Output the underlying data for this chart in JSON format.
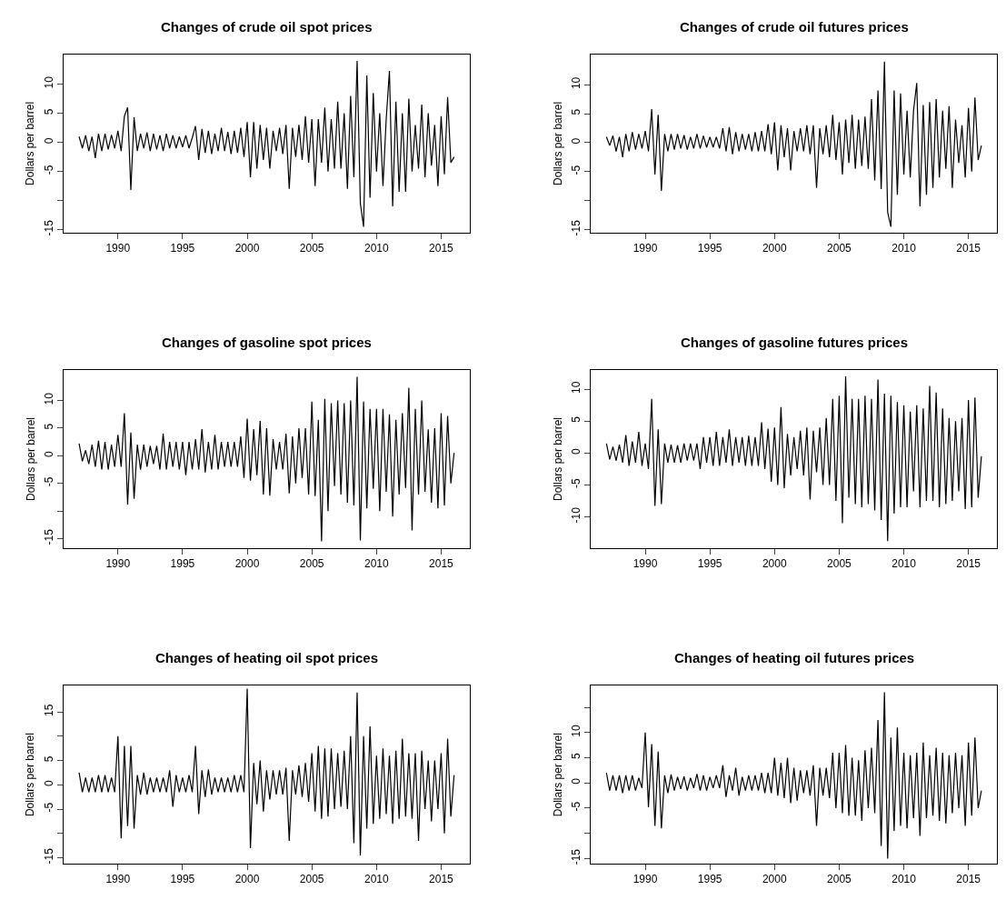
{
  "chart_data": [
    {
      "type": "line",
      "title": "Changes of crude oil spot prices",
      "ylabel": "Dollars per barrel",
      "color": "#000000",
      "xlim": [
        1985.8,
        2017.2
      ],
      "xticks": [
        1990,
        1995,
        2000,
        2005,
        2010,
        2015
      ],
      "ylim": [
        -15.5,
        15.1
      ],
      "yticks": [
        -15,
        {
          "value": -10,
          "label": null
        },
        -5,
        0,
        5,
        10
      ],
      "x": [
        1987.0,
        1987.25,
        1987.5,
        1987.75,
        1988.0,
        1988.25,
        1988.5,
        1988.75,
        1989.0,
        1989.25,
        1989.5,
        1989.75,
        1990.0,
        1990.25,
        1990.5,
        1990.75,
        1991.0,
        1991.25,
        1991.5,
        1991.75,
        1992.0,
        1992.25,
        1992.5,
        1992.75,
        1993.0,
        1993.25,
        1993.5,
        1993.75,
        1994.0,
        1994.25,
        1994.5,
        1994.75,
        1995.0,
        1995.25,
        1995.5,
        1995.75,
        1996.0,
        1996.25,
        1996.5,
        1996.75,
        1997.0,
        1997.25,
        1997.5,
        1997.75,
        1998.0,
        1998.25,
        1998.5,
        1998.75,
        1999.0,
        1999.25,
        1999.5,
        1999.75,
        2000.0,
        2000.25,
        2000.5,
        2000.75,
        2001.0,
        2001.25,
        2001.5,
        2001.75,
        2002.0,
        2002.25,
        2002.5,
        2002.75,
        2003.0,
        2003.25,
        2003.5,
        2003.75,
        2004.0,
        2004.25,
        2004.5,
        2004.75,
        2005.0,
        2005.25,
        2005.5,
        2005.75,
        2006.0,
        2006.25,
        2006.5,
        2006.75,
        2007.0,
        2007.25,
        2007.5,
        2007.75,
        2008.0,
        2008.25,
        2008.5,
        2008.75,
        2009.0,
        2009.25,
        2009.5,
        2009.75,
        2010.0,
        2010.25,
        2010.5,
        2010.75,
        2011.0,
        2011.25,
        2011.5,
        2011.75,
        2012.0,
        2012.25,
        2012.5,
        2012.75,
        2013.0,
        2013.25,
        2013.5,
        2013.75,
        2014.0,
        2014.25,
        2014.5,
        2014.75,
        2015.0,
        2015.25,
        2015.5,
        2015.75,
        2016.0
      ],
      "values": [
        1,
        -1,
        1.2,
        -1.5,
        1,
        -2.7,
        1.5,
        -1.5,
        1.5,
        -1.2,
        1.3,
        -1,
        2,
        -1.5,
        4.5,
        6,
        -8.2,
        4.3,
        -1.5,
        1.5,
        -1,
        1.7,
        -1.5,
        1.5,
        -1.2,
        1.2,
        -1.5,
        1.5,
        -1,
        1.2,
        -1,
        1,
        -0.8,
        1.2,
        -1,
        0.8,
        2.8,
        -3,
        2.3,
        -1.8,
        2,
        -2,
        1.5,
        -1.5,
        2.5,
        -1.5,
        1.8,
        -2,
        2,
        -1.8,
        2.5,
        -2.5,
        3.5,
        -6,
        3.5,
        -4.5,
        3,
        -3,
        2.5,
        -4.5,
        2,
        -1.5,
        2.5,
        -2,
        3,
        -8,
        2.5,
        -2.5,
        3,
        -3,
        4.5,
        -3.5,
        4,
        -7.5,
        4,
        -3.5,
        6,
        -5,
        4,
        -4.5,
        7,
        -4.5,
        5,
        -8,
        8,
        -6,
        14,
        -10.5,
        -14.5,
        11.5,
        -9.5,
        8.5,
        -5,
        5,
        -7.5,
        4,
        12.3,
        -11,
        7,
        -8.5,
        5,
        -8.5,
        7.5,
        -5,
        3,
        -4.5,
        6.5,
        -6,
        5,
        -4,
        3,
        -7.5,
        4.5,
        -5.5,
        7.8,
        -3.5,
        -2.5
      ]
    },
    {
      "type": "line",
      "title": "Changes of crude oil futures prices",
      "ylabel": "Dollars per barrel",
      "color": "#000000",
      "xlim": [
        1985.8,
        2017.2
      ],
      "xticks": [
        1990,
        1995,
        2000,
        2005,
        2010,
        2015
      ],
      "ylim": [
        -15.5,
        15.2
      ],
      "yticks": [
        -15,
        {
          "value": -10,
          "label": null
        },
        -5,
        0,
        5,
        10
      ],
      "x": [
        1987.0,
        1987.25,
        1987.5,
        1987.75,
        1988.0,
        1988.25,
        1988.5,
        1988.75,
        1989.0,
        1989.25,
        1989.5,
        1989.75,
        1990.0,
        1990.25,
        1990.5,
        1990.75,
        1991.0,
        1991.25,
        1991.5,
        1991.75,
        1992.0,
        1992.25,
        1992.5,
        1992.75,
        1993.0,
        1993.25,
        1993.5,
        1993.75,
        1994.0,
        1994.25,
        1994.5,
        1994.75,
        1995.0,
        1995.25,
        1995.5,
        1995.75,
        1996.0,
        1996.25,
        1996.5,
        1996.75,
        1997.0,
        1997.25,
        1997.5,
        1997.75,
        1998.0,
        1998.25,
        1998.5,
        1998.75,
        1999.0,
        1999.25,
        1999.5,
        1999.75,
        2000.0,
        2000.25,
        2000.5,
        2000.75,
        2001.0,
        2001.25,
        2001.5,
        2001.75,
        2002.0,
        2002.25,
        2002.5,
        2002.75,
        2003.0,
        2003.25,
        2003.5,
        2003.75,
        2004.0,
        2004.25,
        2004.5,
        2004.75,
        2005.0,
        2005.25,
        2005.5,
        2005.75,
        2006.0,
        2006.25,
        2006.5,
        2006.75,
        2007.0,
        2007.25,
        2007.5,
        2007.75,
        2008.0,
        2008.25,
        2008.5,
        2008.75,
        2009.0,
        2009.25,
        2009.5,
        2009.75,
        2010.0,
        2010.25,
        2010.5,
        2010.75,
        2011.0,
        2011.25,
        2011.5,
        2011.75,
        2012.0,
        2012.25,
        2012.5,
        2012.75,
        2013.0,
        2013.25,
        2013.5,
        2013.75,
        2014.0,
        2014.25,
        2014.5,
        2014.75,
        2015.0,
        2015.25,
        2015.5,
        2015.75,
        2016.0
      ],
      "values": [
        1,
        -0.5,
        1.2,
        -1.5,
        1,
        -2.5,
        1.5,
        -1.5,
        1.8,
        -1.2,
        1.5,
        -1,
        2,
        -1.5,
        5.8,
        -5.5,
        4.8,
        -8.3,
        1.5,
        -1.5,
        1.5,
        -1.2,
        1.5,
        -1,
        1.3,
        -1.2,
        1,
        -1,
        1.5,
        -1,
        1.2,
        -0.8,
        1,
        -0.8,
        1,
        -1,
        2.5,
        -1.5,
        2.7,
        -2,
        1.8,
        -1.5,
        1.5,
        -1.2,
        1.5,
        -1.5,
        1.8,
        -1.5,
        2,
        -1.5,
        3.2,
        -2,
        3.5,
        -4.8,
        3,
        -2.5,
        2.5,
        -4.8,
        2,
        -1.5,
        2.5,
        -1.5,
        3,
        -2,
        3,
        -7.8,
        2.5,
        -2,
        3,
        -2.5,
        4.8,
        -3,
        3.5,
        -5.5,
        4,
        -3.5,
        4.8,
        -4.5,
        4,
        -4,
        4.5,
        -4.5,
        7.5,
        -6.5,
        9,
        -8,
        14,
        -12,
        -14.5,
        9,
        -9,
        8.5,
        -5.5,
        5.5,
        -6,
        5.5,
        10.3,
        -11,
        6.5,
        -9,
        7,
        -7.8,
        7.5,
        -6,
        5.5,
        -4.5,
        6.3,
        -7.8,
        4,
        -3.5,
        3,
        -6,
        6,
        -5,
        7.8,
        -3,
        -0.5
      ]
    },
    {
      "type": "line",
      "title": "Changes of gasoline spot prices",
      "ylabel": "Dollars per barrel",
      "color": "#000000",
      "xlim": [
        1985.8,
        2017.2
      ],
      "xticks": [
        1990,
        1995,
        2000,
        2005,
        2010,
        2015
      ],
      "ylim": [
        -16.7,
        15.5
      ],
      "yticks": [
        -15,
        {
          "value": -10,
          "label": null
        },
        -5,
        0,
        5,
        10
      ],
      "x": [
        1987.0,
        1987.25,
        1987.5,
        1987.75,
        1988.0,
        1988.25,
        1988.5,
        1988.75,
        1989.0,
        1989.25,
        1989.5,
        1989.75,
        1990.0,
        1990.25,
        1990.5,
        1990.75,
        1991.0,
        1991.25,
        1991.5,
        1991.75,
        1992.0,
        1992.25,
        1992.5,
        1992.75,
        1993.0,
        1993.25,
        1993.5,
        1993.75,
        1994.0,
        1994.25,
        1994.5,
        1994.75,
        1995.0,
        1995.25,
        1995.5,
        1995.75,
        1996.0,
        1996.25,
        1996.5,
        1996.75,
        1997.0,
        1997.25,
        1997.5,
        1997.75,
        1998.0,
        1998.25,
        1998.5,
        1998.75,
        1999.0,
        1999.25,
        1999.5,
        1999.75,
        2000.0,
        2000.25,
        2000.5,
        2000.75,
        2001.0,
        2001.25,
        2001.5,
        2001.75,
        2002.0,
        2002.25,
        2002.5,
        2002.75,
        2003.0,
        2003.25,
        2003.5,
        2003.75,
        2004.0,
        2004.25,
        2004.5,
        2004.75,
        2005.0,
        2005.25,
        2005.5,
        2005.75,
        2006.0,
        2006.25,
        2006.5,
        2006.75,
        2007.0,
        2007.25,
        2007.5,
        2007.75,
        2008.0,
        2008.25,
        2008.5,
        2008.75,
        2009.0,
        2009.25,
        2009.5,
        2009.75,
        2010.0,
        2010.25,
        2010.5,
        2010.75,
        2011.0,
        2011.25,
        2011.5,
        2011.75,
        2012.0,
        2012.25,
        2012.5,
        2012.75,
        2013.0,
        2013.25,
        2013.5,
        2013.75,
        2014.0,
        2014.25,
        2014.5,
        2014.75,
        2015.0,
        2015.25,
        2015.5,
        2015.75,
        2016.0
      ],
      "values": [
        2.2,
        -1,
        1,
        -1.5,
        2,
        -2,
        2.7,
        -2.5,
        2.5,
        -2.5,
        2,
        -2,
        3.8,
        -2,
        7.7,
        -8.8,
        4.2,
        -7.8,
        2,
        -2.5,
        2,
        -2,
        1.8,
        -1.5,
        1.8,
        -2.5,
        4,
        -2.5,
        2.5,
        -2,
        2.5,
        -2.5,
        2.5,
        -3.5,
        2.5,
        -2.5,
        3,
        -2.5,
        4.8,
        -3,
        2.5,
        -2.5,
        3.8,
        -2.5,
        2.5,
        -2,
        2.5,
        -2,
        2.5,
        -2,
        3.5,
        -4,
        6.7,
        -4.5,
        4.8,
        -3.5,
        6.3,
        -7,
        5,
        -7.2,
        3,
        -2.5,
        2.5,
        -2.5,
        4,
        -6.8,
        3.5,
        -5,
        5,
        -4,
        5,
        -7,
        9.8,
        -7.3,
        6.5,
        -15.5,
        10.3,
        -10,
        9.5,
        -5.5,
        10,
        -7,
        9.5,
        -8.5,
        10,
        -9,
        14.3,
        -15.3,
        9.8,
        -9.5,
        8.5,
        -6,
        8.5,
        -10,
        8.5,
        -6.5,
        7.5,
        -11,
        6.5,
        -7,
        7.7,
        -5.8,
        12.3,
        -13.5,
        8.5,
        -7,
        10,
        -6.5,
        4.8,
        -8.5,
        5,
        -9.5,
        7.7,
        -9,
        7.2,
        -5,
        0.5
      ]
    },
    {
      "type": "line",
      "title": "Changes of gasoline futures prices",
      "ylabel": "Dollars per barrel",
      "color": "#000000",
      "xlim": [
        1985.8,
        2017.2
      ],
      "xticks": [
        1990,
        1995,
        2000,
        2005,
        2010,
        2015
      ],
      "ylim": [
        -14.9,
        13
      ],
      "yticks": [
        -10,
        -5,
        0,
        5,
        10
      ],
      "x": [
        1987.0,
        1987.25,
        1987.5,
        1987.75,
        1988.0,
        1988.25,
        1988.5,
        1988.75,
        1989.0,
        1989.25,
        1989.5,
        1989.75,
        1990.0,
        1990.25,
        1990.5,
        1990.75,
        1991.0,
        1991.25,
        1991.5,
        1991.75,
        1992.0,
        1992.25,
        1992.5,
        1992.75,
        1993.0,
        1993.25,
        1993.5,
        1993.75,
        1994.0,
        1994.25,
        1994.5,
        1994.75,
        1995.0,
        1995.25,
        1995.5,
        1995.75,
        1996.0,
        1996.25,
        1996.5,
        1996.75,
        1997.0,
        1997.25,
        1997.5,
        1997.75,
        1998.0,
        1998.25,
        1998.5,
        1998.75,
        1999.0,
        1999.25,
        1999.5,
        1999.75,
        2000.0,
        2000.25,
        2000.5,
        2000.75,
        2001.0,
        2001.25,
        2001.5,
        2001.75,
        2002.0,
        2002.25,
        2002.5,
        2002.75,
        2003.0,
        2003.25,
        2003.5,
        2003.75,
        2004.0,
        2004.25,
        2004.5,
        2004.75,
        2005.0,
        2005.25,
        2005.5,
        2005.75,
        2006.0,
        2006.25,
        2006.5,
        2006.75,
        2007.0,
        2007.25,
        2007.5,
        2007.75,
        2008.0,
        2008.25,
        2008.5,
        2008.75,
        2009.0,
        2009.25,
        2009.5,
        2009.75,
        2010.0,
        2010.25,
        2010.5,
        2010.75,
        2011.0,
        2011.25,
        2011.5,
        2011.75,
        2012.0,
        2012.25,
        2012.5,
        2012.75,
        2013.0,
        2013.25,
        2013.5,
        2013.75,
        2014.0,
        2014.25,
        2014.5,
        2014.75,
        2015.0,
        2015.25,
        2015.5,
        2015.75,
        2016.0
      ],
      "values": [
        1.5,
        -1,
        1,
        -1.2,
        1.3,
        -1.5,
        2.8,
        -2,
        1.8,
        -1.5,
        3.3,
        -2,
        1.5,
        -2.5,
        8.5,
        -8.3,
        3.7,
        -8,
        1.5,
        -1.5,
        1.3,
        -1.5,
        1.2,
        -1.5,
        1.5,
        -1.2,
        1.5,
        -1.2,
        1.5,
        -2.5,
        2.5,
        -1.5,
        2.5,
        -2,
        3.3,
        -2,
        2.5,
        -1.5,
        3.7,
        -2,
        2.5,
        -1.5,
        2.5,
        -2,
        2.7,
        -2,
        2.5,
        -2,
        4.8,
        -2.5,
        3.8,
        -4.5,
        4,
        -5,
        7.2,
        -5.5,
        3,
        -3.5,
        2.5,
        -2.5,
        3.5,
        -3.5,
        4,
        -7.3,
        3.5,
        -3,
        4,
        -5,
        5.5,
        -5,
        8.5,
        -7.5,
        9,
        -11,
        12,
        -7,
        8.5,
        -8,
        8.5,
        -8.5,
        9,
        -8,
        8.5,
        -9,
        11.5,
        -10.5,
        9.3,
        -13.8,
        9,
        -9.5,
        8,
        -8.5,
        7.5,
        -8.5,
        6.5,
        -6,
        7.5,
        -8.5,
        7,
        -7.5,
        10.5,
        -7.5,
        9.5,
        -8.5,
        7,
        -8,
        5.5,
        -7.5,
        5,
        -6,
        5.5,
        -8.8,
        8.3,
        -8.5,
        8.7,
        -7,
        -0.5
      ]
    },
    {
      "type": "line",
      "title": "Changes of heating oil spot prices",
      "ylabel": "Dollars per barrel",
      "color": "#000000",
      "xlim": [
        1985.8,
        2017.2
      ],
      "xticks": [
        1990,
        1995,
        2000,
        2005,
        2010,
        2015
      ],
      "ylim": [
        -16.2,
        20.4
      ],
      "yticks": [
        -15,
        {
          "value": -10,
          "label": null
        },
        -5,
        0,
        5,
        {
          "value": 10,
          "label": null
        },
        15
      ],
      "x": [
        1987.0,
        1987.25,
        1987.5,
        1987.75,
        1988.0,
        1988.25,
        1988.5,
        1988.75,
        1989.0,
        1989.25,
        1989.5,
        1989.75,
        1990.0,
        1990.25,
        1990.5,
        1990.75,
        1991.0,
        1991.25,
        1991.5,
        1991.75,
        1992.0,
        1992.25,
        1992.5,
        1992.75,
        1993.0,
        1993.25,
        1993.5,
        1993.75,
        1994.0,
        1994.25,
        1994.5,
        1994.75,
        1995.0,
        1995.25,
        1995.5,
        1995.75,
        1996.0,
        1996.25,
        1996.5,
        1996.75,
        1997.0,
        1997.25,
        1997.5,
        1997.75,
        1998.0,
        1998.25,
        1998.5,
        1998.75,
        1999.0,
        1999.25,
        1999.5,
        1999.75,
        2000.0,
        2000.25,
        2000.5,
        2000.75,
        2001.0,
        2001.25,
        2001.5,
        2001.75,
        2002.0,
        2002.25,
        2002.5,
        2002.75,
        2003.0,
        2003.25,
        2003.5,
        2003.75,
        2004.0,
        2004.25,
        2004.5,
        2004.75,
        2005.0,
        2005.25,
        2005.5,
        2005.75,
        2006.0,
        2006.25,
        2006.5,
        2006.75,
        2007.0,
        2007.25,
        2007.5,
        2007.75,
        2008.0,
        2008.25,
        2008.5,
        2008.75,
        2009.0,
        2009.25,
        2009.5,
        2009.75,
        2010.0,
        2010.25,
        2010.5,
        2010.75,
        2011.0,
        2011.25,
        2011.5,
        2011.75,
        2012.0,
        2012.25,
        2012.5,
        2012.75,
        2013.0,
        2013.25,
        2013.5,
        2013.75,
        2014.0,
        2014.25,
        2014.5,
        2014.75,
        2015.0,
        2015.25,
        2015.5,
        2015.75,
        2016.0
      ],
      "values": [
        2.5,
        -1.5,
        1.5,
        -1.5,
        1.5,
        -1.5,
        2,
        -1.5,
        2,
        -1.5,
        1.5,
        -1.5,
        10,
        -11,
        8,
        -8.5,
        8,
        -9,
        2,
        -2,
        2.5,
        -2,
        1.5,
        -1.5,
        1.5,
        -1.5,
        1.5,
        -1.5,
        3,
        -4.5,
        2,
        -1.5,
        1.5,
        -1.5,
        2,
        -1.5,
        8,
        -6,
        3,
        -2.5,
        3.2,
        -2,
        1.5,
        -1.5,
        1.5,
        -1.5,
        1.5,
        -1.5,
        2,
        -1.5,
        2,
        -1.5,
        19.8,
        -13,
        4.5,
        -4,
        5,
        -5.5,
        3,
        -3,
        3,
        -2,
        3,
        -2,
        3.5,
        -11.5,
        3,
        -2,
        4,
        -2.5,
        4.5,
        -3.5,
        6.5,
        -5.5,
        8,
        -7,
        7.5,
        -6.5,
        7.5,
        -5,
        6.5,
        -4.5,
        7,
        -5,
        10,
        -12,
        19,
        -14.5,
        10,
        -9,
        12,
        -8,
        6,
        -7,
        7.5,
        -6,
        6,
        -8,
        7,
        -7,
        9.5,
        -6.5,
        6.5,
        -7,
        6.5,
        -11.5,
        7,
        -5,
        5,
        -7.5,
        5,
        -5,
        6.5,
        -10,
        9.5,
        -6.5,
        2
      ]
    },
    {
      "type": "line",
      "title": "Changes of heating oil futures prices",
      "ylabel": "Dollars per barrel",
      "color": "#000000",
      "xlim": [
        1985.8,
        2017.2
      ],
      "xticks": [
        1990,
        1995,
        2000,
        2005,
        2010,
        2015
      ],
      "ylim": [
        -16,
        19.3
      ],
      "yticks": [
        -15,
        {
          "value": -10,
          "label": null
        },
        -5,
        0,
        5,
        10,
        {
          "value": 15,
          "label": null
        }
      ],
      "x": [
        1987.0,
        1987.25,
        1987.5,
        1987.75,
        1988.0,
        1988.25,
        1988.5,
        1988.75,
        1989.0,
        1989.25,
        1989.5,
        1989.75,
        1990.0,
        1990.25,
        1990.5,
        1990.75,
        1991.0,
        1991.25,
        1991.5,
        1991.75,
        1992.0,
        1992.25,
        1992.5,
        1992.75,
        1993.0,
        1993.25,
        1993.5,
        1993.75,
        1994.0,
        1994.25,
        1994.5,
        1994.75,
        1995.0,
        1995.25,
        1995.5,
        1995.75,
        1996.0,
        1996.25,
        1996.5,
        1996.75,
        1997.0,
        1997.25,
        1997.5,
        1997.75,
        1998.0,
        1998.25,
        1998.5,
        1998.75,
        1999.0,
        1999.25,
        1999.5,
        1999.75,
        2000.0,
        2000.25,
        2000.5,
        2000.75,
        2001.0,
        2001.25,
        2001.5,
        2001.75,
        2002.0,
        2002.25,
        2002.5,
        2002.75,
        2003.0,
        2003.25,
        2003.5,
        2003.75,
        2004.0,
        2004.25,
        2004.5,
        2004.75,
        2005.0,
        2005.25,
        2005.5,
        2005.75,
        2006.0,
        2006.25,
        2006.5,
        2006.75,
        2007.0,
        2007.25,
        2007.5,
        2007.75,
        2008.0,
        2008.25,
        2008.5,
        2008.75,
        2009.0,
        2009.25,
        2009.5,
        2009.75,
        2010.0,
        2010.25,
        2010.5,
        2010.75,
        2011.0,
        2011.25,
        2011.5,
        2011.75,
        2012.0,
        2012.25,
        2012.5,
        2012.75,
        2013.0,
        2013.25,
        2013.5,
        2013.75,
        2014.0,
        2014.25,
        2014.5,
        2014.75,
        2015.0,
        2015.25,
        2015.5,
        2015.75,
        2016.0
      ],
      "values": [
        2,
        -1.5,
        1.5,
        -1.5,
        1.5,
        -2,
        1.5,
        -1.5,
        1.5,
        -1.5,
        1,
        -1,
        10,
        -4.8,
        7.7,
        -8.5,
        6.2,
        -9,
        1.5,
        -2,
        1.7,
        -1.5,
        1.2,
        -1.2,
        1.3,
        -1.5,
        1,
        -1,
        1.8,
        -1.5,
        1.5,
        -1.5,
        1.2,
        -1,
        1.5,
        -1,
        3.5,
        -2.8,
        1.5,
        -1.5,
        3,
        -2.5,
        1.2,
        -1.5,
        1.5,
        -1.5,
        1.5,
        -1.5,
        2,
        -2,
        2,
        -2,
        5,
        -2.5,
        4,
        -3,
        5,
        -4,
        3,
        -3.5,
        2.5,
        -2,
        2.5,
        -2.5,
        3.5,
        -8.5,
        3,
        -2.5,
        3,
        -3,
        6,
        -5,
        6,
        -6,
        7.5,
        -6.5,
        5,
        -6.5,
        4.5,
        -7.5,
        6.5,
        -5,
        7,
        -6,
        12.5,
        -12.5,
        18,
        -15,
        9,
        -9.5,
        11,
        -8.5,
        6,
        -9,
        5.5,
        -7,
        6,
        -10.5,
        8,
        -7,
        5.5,
        -6.5,
        7,
        -7.5,
        6,
        -8,
        5.5,
        -6,
        6,
        -5,
        5.5,
        -8.5,
        8,
        -6.5,
        9,
        -5,
        -1.5
      ]
    }
  ]
}
